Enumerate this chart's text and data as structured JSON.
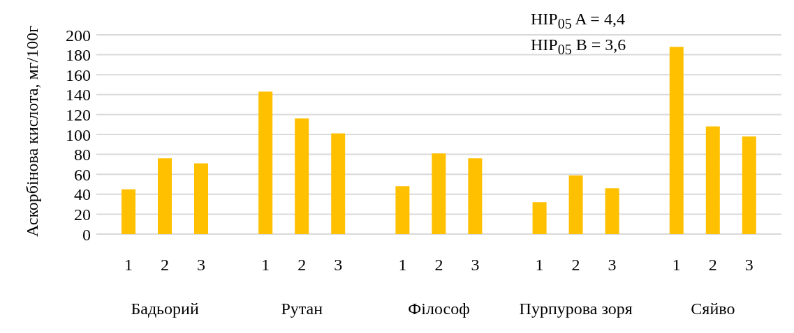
{
  "chart_data": {
    "type": "bar",
    "ylabel": "Аскорбінова кислота, мг/100г",
    "categories": [
      "Бадьорий",
      "Рутан",
      "Філософ",
      "Пурпурова зоря",
      "Сяйво"
    ],
    "series": [
      {
        "name": "1",
        "color": "#ffc000",
        "values": [
          45,
          143,
          48,
          32,
          188
        ]
      },
      {
        "name": "2",
        "color": "#ffc000",
        "values": [
          76,
          116,
          81,
          59,
          108
        ]
      },
      {
        "name": "3",
        "color": "#ffc000",
        "values": [
          71,
          101,
          76,
          46,
          98
        ]
      }
    ],
    "ylim": [
      0,
      200
    ],
    "yticks": [
      0,
      20,
      40,
      60,
      80,
      100,
      120,
      140,
      160,
      180,
      200
    ],
    "grid": "y",
    "legend": false,
    "annotations": [
      "HIP$_{05}$ A = 4,4",
      "HIP$_{05}$ B = 3,6"
    ]
  }
}
